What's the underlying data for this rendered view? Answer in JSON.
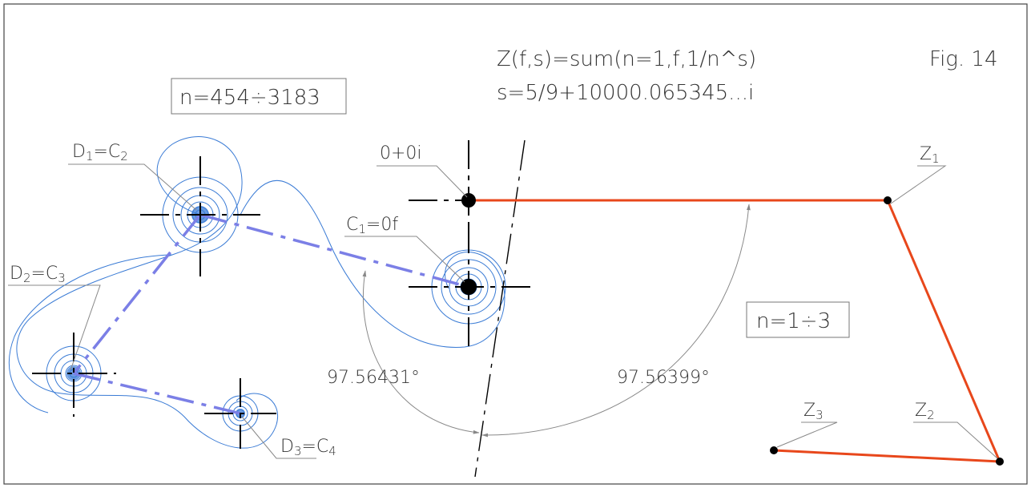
{
  "figure": {
    "formula_line1": "Z(f,s)=sum(n=1,f,1/n^s)",
    "formula_line2": "s=5/9+10000.065345...i",
    "fig_label": "Fig. 14",
    "range_top": "n=454÷3183",
    "range_right": "n=1÷3",
    "angle_left": "97.56431°",
    "angle_right": "97.56399°"
  },
  "labels": {
    "origin": "0+0i",
    "d1_main": "D",
    "d1_sub1": "1",
    "d1_eq": "=C",
    "d1_sub2": "2",
    "d2_main": "D",
    "d2_sub1": "2",
    "d2_eq": "=C",
    "d2_sub2": "3",
    "d3_main": "D",
    "d3_sub1": "3",
    "d3_eq": "=C",
    "d3_sub2": "4",
    "c1_main": "C",
    "c1_sub1": "1",
    "c1_eq": "=0f",
    "z1_main": "Z",
    "z1_sub": "1",
    "z2_main": "Z",
    "z2_sub": "2",
    "z3_main": "Z",
    "z3_sub": "3"
  },
  "colors": {
    "spiral": "#3a7bd5",
    "dash_link": "#7b7fe6",
    "polyline": "#e8471b",
    "axis": "#000000",
    "leader": "#888888"
  }
}
